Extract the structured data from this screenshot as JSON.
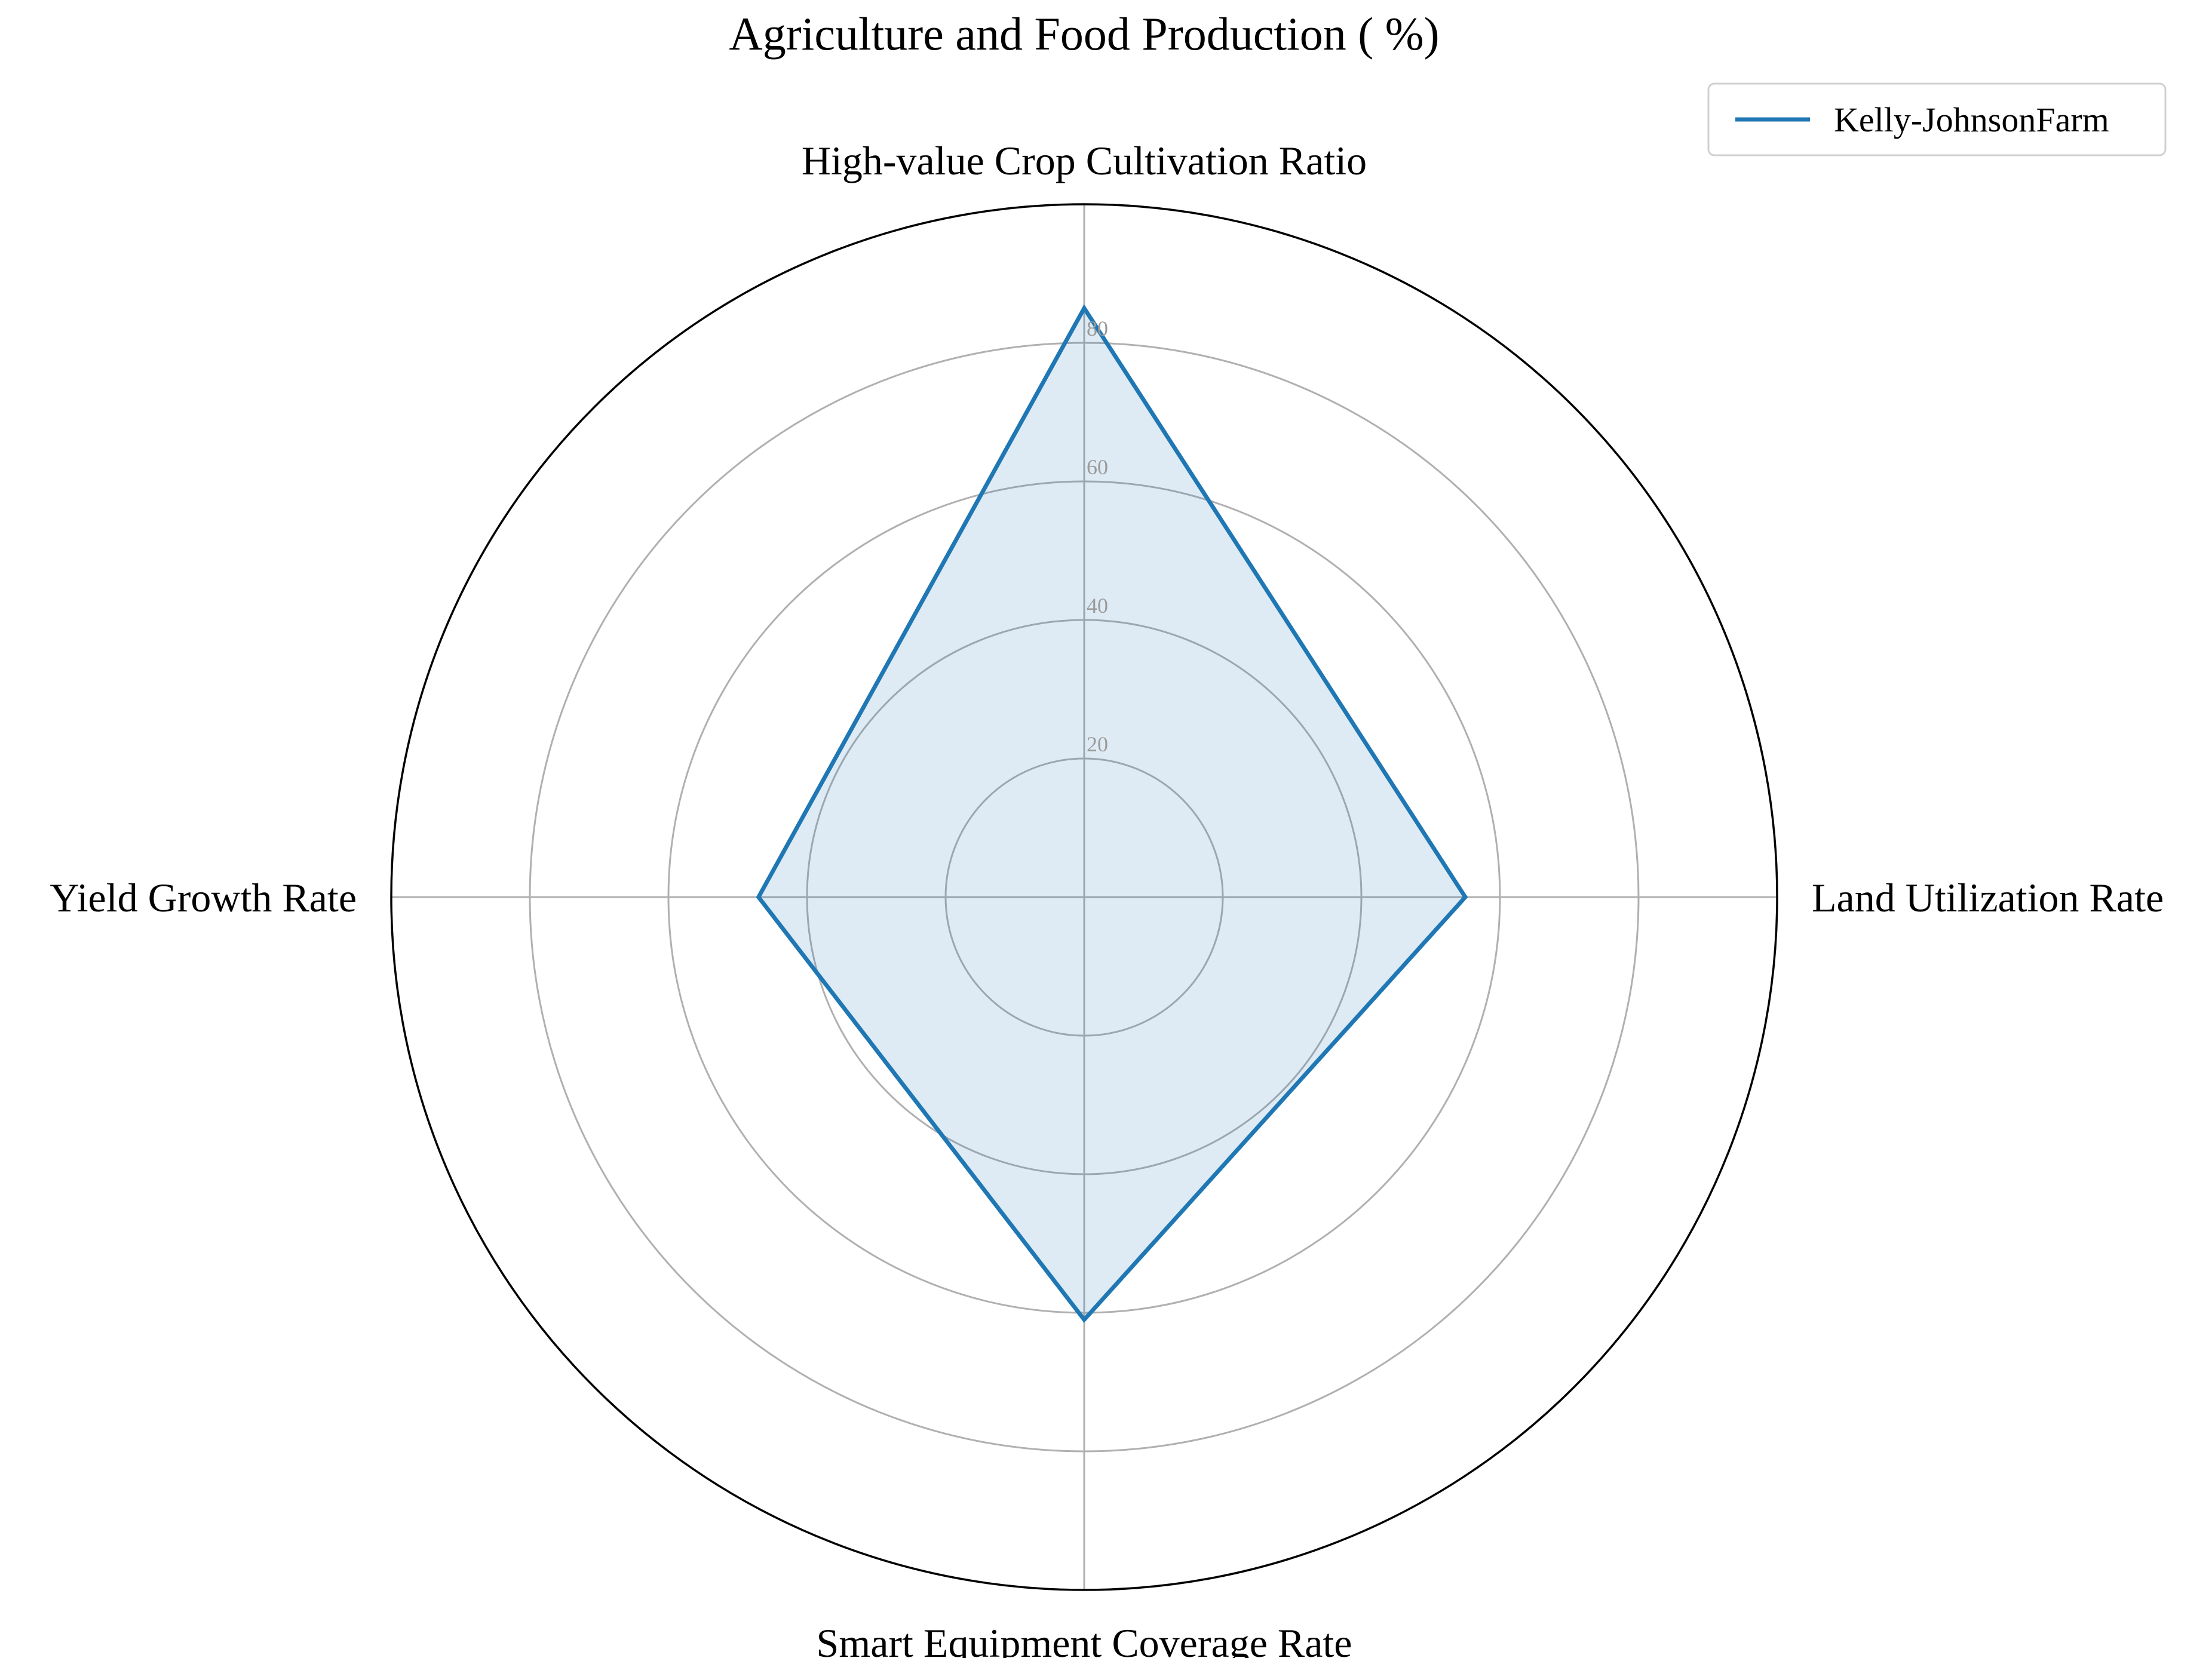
{
  "chart_data": {
    "type": "radar",
    "title": "Agriculture and Food Production ( %)",
    "axes": [
      "High-value Crop Cultivation Ratio",
      "Land Utilization Rate",
      "Smart Equipment Coverage Rate",
      "Yield Growth Rate"
    ],
    "radial_ticks": [
      20,
      40,
      60,
      80
    ],
    "rlim": [
      0,
      100
    ],
    "grid": true,
    "legend_position": "top-right",
    "series": [
      {
        "name": "Kelly-JohnsonFarm",
        "values": [
          85,
          55,
          61,
          47
        ],
        "color": "#1f77b4",
        "fill_color": "#1f77b4",
        "fill_opacity": 0.15
      }
    ],
    "colors": {
      "grid": "#b0b0b0",
      "outer_ring": "#000000",
      "tick_label": "#9a9a9a",
      "legend_border": "#d0d0d0"
    }
  }
}
